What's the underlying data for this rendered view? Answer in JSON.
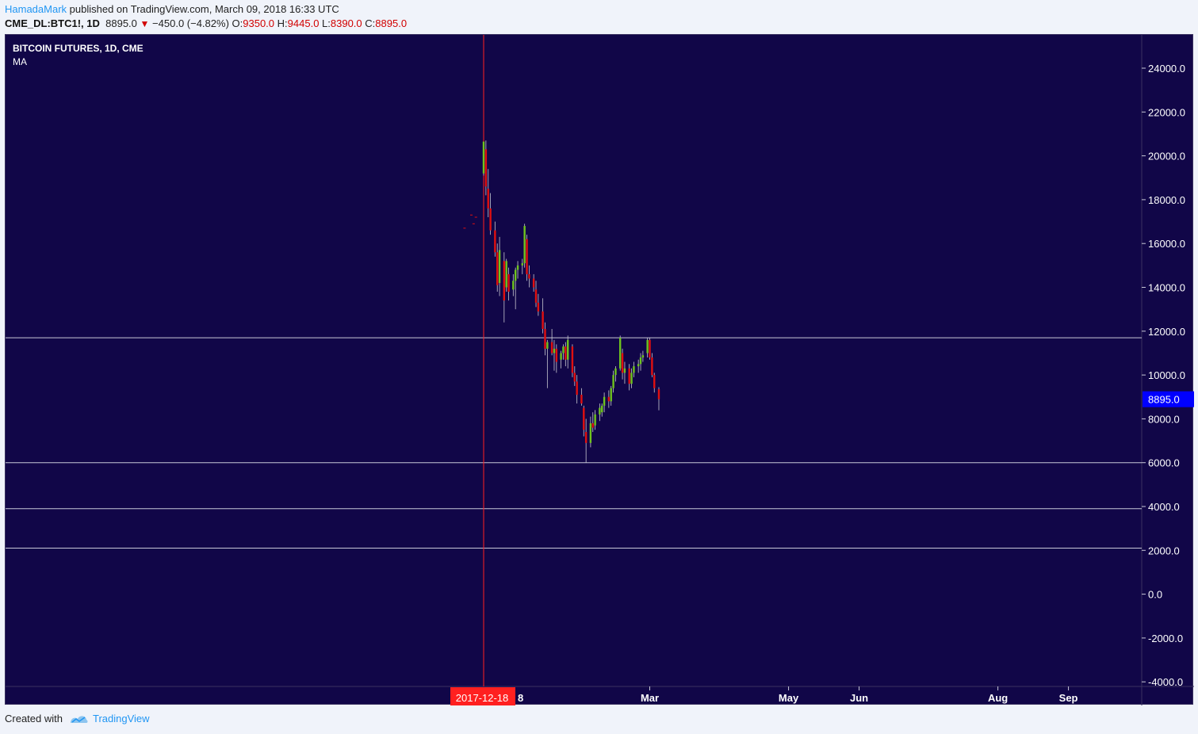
{
  "header": {
    "author": "HamadaMark",
    "published_text": " published on TradingView.com, March 09, 2018 16:33 UTC",
    "symbol": "CME_DL:BTC1!, 1D",
    "last": "8895.0",
    "change": "−450.0 (−4.82%)",
    "o_label": "O:",
    "o_val": "9350.0",
    "h_label": "H:",
    "h_val": "9445.0",
    "l_label": "L:",
    "l_val": "8390.0",
    "c_label": "C:",
    "c_val": "8895.0"
  },
  "legend": {
    "title": "BITCOIN FUTURES, 1D, CME",
    "indicator": "MA"
  },
  "footer": {
    "created_with": "Created with",
    "brand": "TradingView"
  },
  "colors": {
    "background": "#110648",
    "up": "#6fc31e",
    "down": "#e01010",
    "crosshair": "#ff2020",
    "price_tag": "#0000ff",
    "hline": "#c8c8d8"
  },
  "chart_data": {
    "type": "candlestick",
    "title": "BITCOIN FUTURES, 1D, CME",
    "ylim": [
      -4000,
      25000
    ],
    "y_ticks": [
      24000,
      22000,
      20000,
      18000,
      16000,
      14000,
      12000,
      10000,
      8000,
      6000,
      4000,
      2000,
      0,
      -2000,
      -4000
    ],
    "y_tick_labels": [
      "24000.0",
      "22000.0",
      "20000.0",
      "18000.0",
      "16000.0",
      "14000.0",
      "12000.0",
      "10000.0",
      "8000.0",
      "6000.0",
      "4000.0",
      "2000.0",
      "0.0",
      "-2000.0",
      "-4000.0"
    ],
    "x_labels": [
      {
        "date": "2018-03-01",
        "label": "Mar"
      },
      {
        "date": "2018-05-01",
        "label": "May"
      },
      {
        "date": "2018-06-01",
        "label": "Jun"
      },
      {
        "date": "2018-08-01",
        "label": "Aug"
      },
      {
        "date": "2018-09-01",
        "label": "Sep"
      }
    ],
    "x_range": [
      "2017-12-11",
      "2018-09-30"
    ],
    "crosshair": {
      "date": "2017-12-18",
      "label": "2017-12-18",
      "hidden_suffix": "8"
    },
    "last_price": {
      "value": 8895,
      "label": "8895.0"
    },
    "horizontal_lines": [
      11700,
      6000,
      3900,
      2100
    ],
    "candles_start_date": "2017-12-18",
    "candles": [
      [
        19200,
        20650,
        19100,
        20650
      ],
      [
        20300,
        20700,
        18200,
        18600
      ],
      [
        18500,
        19400,
        17200,
        17600
      ],
      [
        17600,
        18300,
        16400,
        16600
      ],
      [
        16600,
        17000,
        15400,
        15600
      ],
      [
        15600,
        16000,
        13800,
        14100
      ],
      [
        14200,
        16300,
        13600,
        15700
      ],
      [
        15200,
        15600,
        12400,
        13400
      ],
      [
        14000,
        15300,
        13800,
        15200
      ],
      [
        14600,
        14900,
        13400,
        13800
      ],
      [
        13900,
        14600,
        13600,
        14300
      ],
      [
        14300,
        14900,
        13000,
        14800
      ],
      [
        14800,
        15200,
        14400,
        15000
      ],
      [
        15000,
        15300,
        14600,
        15100
      ],
      [
        15100,
        16900,
        14900,
        16800
      ],
      [
        16200,
        16400,
        14300,
        14600
      ],
      [
        14600,
        15000,
        14000,
        14400
      ],
      [
        14400,
        14600,
        13800,
        14000
      ],
      [
        13900,
        14300,
        13100,
        13300
      ],
      [
        13300,
        13700,
        12700,
        12900
      ],
      [
        12900,
        13500,
        11900,
        12100
      ],
      [
        12100,
        12400,
        10900,
        11200
      ],
      [
        11200,
        11600,
        9400,
        11500
      ],
      [
        11500,
        12100,
        10900,
        11000
      ],
      [
        11000,
        11600,
        10200,
        11200
      ],
      [
        11200,
        11400,
        10100,
        10600
      ],
      [
        10700,
        11100,
        10300,
        11000
      ],
      [
        11000,
        11400,
        10700,
        11300
      ],
      [
        11300,
        11500,
        10400,
        10700
      ],
      [
        10700,
        11800,
        10300,
        11600
      ],
      [
        11300,
        11400,
        9900,
        10100
      ],
      [
        10100,
        10400,
        9500,
        9700
      ],
      [
        9700,
        10000,
        8700,
        9100
      ],
      [
        9100,
        9400,
        8600,
        8700
      ],
      [
        8500,
        8600,
        7200,
        7500
      ],
      [
        7400,
        8000,
        6000,
        6900
      ],
      [
        6900,
        8100,
        6700,
        7800
      ],
      [
        7800,
        8300,
        7400,
        7600
      ],
      [
        7700,
        8400,
        7500,
        8200
      ],
      [
        8200,
        8700,
        7900,
        8500
      ],
      [
        8300,
        8700,
        8100,
        8600
      ],
      [
        8600,
        9200,
        8300,
        9000
      ],
      [
        9000,
        9300,
        8500,
        8800
      ],
      [
        8800,
        9500,
        8600,
        9400
      ],
      [
        9400,
        10200,
        9200,
        10000
      ],
      [
        10000,
        10400,
        9700,
        10300
      ],
      [
        10300,
        11800,
        10200,
        11700
      ],
      [
        11000,
        11200,
        9800,
        10100
      ],
      [
        10100,
        10600,
        9600,
        10300
      ],
      [
        10300,
        10500,
        9300,
        9600
      ],
      [
        9600,
        10300,
        9400,
        10100
      ],
      [
        10100,
        10600,
        9900,
        10400
      ],
      [
        10400,
        10700,
        10100,
        10500
      ],
      [
        10500,
        11000,
        10200,
        10800
      ],
      [
        10800,
        11100,
        10600,
        10900
      ],
      [
        11000,
        11700,
        10800,
        11600
      ],
      [
        11600,
        11700,
        10700,
        10800
      ],
      [
        10800,
        11000,
        9900,
        10000
      ],
      [
        10000,
        10100,
        9200,
        9400
      ],
      [
        9350,
        9445,
        8390,
        8895
      ]
    ],
    "pre_marks": [
      [
        17200,
        2
      ],
      [
        16900,
        3
      ],
      [
        17300,
        4
      ],
      [
        16700,
        7
      ]
    ]
  }
}
